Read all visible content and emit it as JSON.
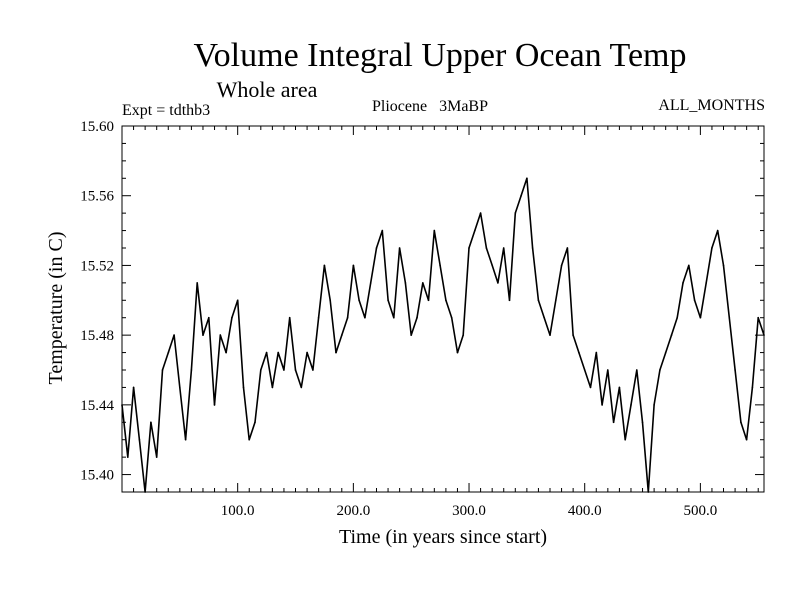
{
  "chart_data": {
    "type": "line",
    "title": "Volume Integral Upper Ocean Temp",
    "subtitle": "Whole area",
    "annotations": {
      "experiment": "Expt = tdthb3",
      "period": "Pliocene   3MaBP",
      "months": "ALL_MONTHS"
    },
    "xlabel": "Time (in years since start)",
    "ylabel": "Temperature (in C)",
    "xlim": [
      0,
      555
    ],
    "ylim": [
      15.39,
      15.6
    ],
    "x_ticks": [
      {
        "value": 100,
        "label": "100.0"
      },
      {
        "value": 200,
        "label": "200.0"
      },
      {
        "value": 300,
        "label": "300.0"
      },
      {
        "value": 400,
        "label": "400.0"
      },
      {
        "value": 500,
        "label": "500.0"
      }
    ],
    "y_ticks": [
      {
        "value": 15.4,
        "label": "15.40"
      },
      {
        "value": 15.44,
        "label": "15.44"
      },
      {
        "value": 15.48,
        "label": "15.48"
      },
      {
        "value": 15.52,
        "label": "15.52"
      },
      {
        "value": 15.56,
        "label": "15.56"
      },
      {
        "value": 15.6,
        "label": "15.60"
      }
    ],
    "grid": false,
    "series": [
      {
        "name": "Volume integral upper ocean temperature",
        "x": [
          0,
          5,
          10,
          15,
          20,
          25,
          30,
          35,
          40,
          45,
          50,
          55,
          60,
          65,
          70,
          75,
          80,
          85,
          90,
          95,
          100,
          105,
          110,
          115,
          120,
          125,
          130,
          135,
          140,
          145,
          150,
          155,
          160,
          165,
          170,
          175,
          180,
          185,
          190,
          195,
          200,
          205,
          210,
          215,
          220,
          225,
          230,
          235,
          240,
          245,
          250,
          255,
          260,
          265,
          270,
          275,
          280,
          285,
          290,
          295,
          300,
          305,
          310,
          315,
          320,
          325,
          330,
          335,
          340,
          345,
          350,
          355,
          360,
          365,
          370,
          375,
          380,
          385,
          390,
          395,
          400,
          405,
          410,
          415,
          420,
          425,
          430,
          435,
          440,
          445,
          450,
          455,
          460,
          465,
          470,
          475,
          480,
          485,
          490,
          495,
          500,
          505,
          510,
          515,
          520,
          525,
          530,
          535,
          540,
          545,
          550,
          555
        ],
        "values": [
          15.44,
          15.41,
          15.45,
          15.42,
          15.39,
          15.43,
          15.41,
          15.46,
          15.47,
          15.48,
          15.45,
          15.42,
          15.46,
          15.51,
          15.48,
          15.49,
          15.44,
          15.48,
          15.47,
          15.49,
          15.5,
          15.45,
          15.42,
          15.43,
          15.46,
          15.47,
          15.45,
          15.47,
          15.46,
          15.49,
          15.46,
          15.45,
          15.47,
          15.46,
          15.49,
          15.52,
          15.5,
          15.47,
          15.48,
          15.49,
          15.52,
          15.5,
          15.49,
          15.51,
          15.53,
          15.54,
          15.5,
          15.49,
          15.53,
          15.51,
          15.48,
          15.49,
          15.51,
          15.5,
          15.54,
          15.52,
          15.5,
          15.49,
          15.47,
          15.48,
          15.53,
          15.54,
          15.55,
          15.53,
          15.52,
          15.51,
          15.53,
          15.5,
          15.55,
          15.56,
          15.57,
          15.53,
          15.5,
          15.49,
          15.48,
          15.5,
          15.52,
          15.53,
          15.48,
          15.47,
          15.46,
          15.45,
          15.47,
          15.44,
          15.46,
          15.43,
          15.45,
          15.42,
          15.44,
          15.46,
          15.43,
          15.39,
          15.44,
          15.46,
          15.47,
          15.48,
          15.49,
          15.51,
          15.52,
          15.5,
          15.49,
          15.51,
          15.53,
          15.54,
          15.52,
          15.49,
          15.46,
          15.43,
          15.42,
          15.45,
          15.49,
          15.48
        ]
      }
    ]
  }
}
